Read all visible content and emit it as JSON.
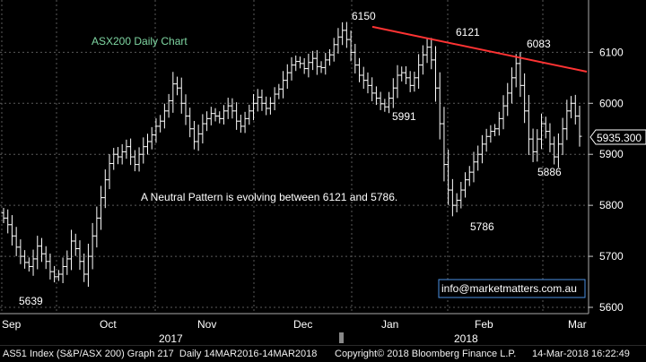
{
  "chart_data": {
    "type": "ohlc",
    "title": "ASX200 Daily Chart",
    "annotation": "A Neutral Pattern is evolving between 6121 and 5786.",
    "watermark": "info@marketmatters.com.au",
    "last_price_label": "5935.300",
    "last_price": 5935.3,
    "ylim": [
      5590,
      6180
    ],
    "y_ticks": [
      5600,
      5700,
      5800,
      5900,
      6000,
      6100
    ],
    "y_tick_labels": [
      "5600",
      "5700",
      "5800",
      "5900",
      "6000",
      "6100"
    ],
    "months": [
      "Sep",
      "Oct",
      "Nov",
      "Dec",
      "Jan",
      "Feb",
      "Mar"
    ],
    "years": [
      "2017",
      "2018"
    ],
    "price_labels": [
      "6150",
      "6121",
      "6083",
      "5991",
      "5886",
      "5786",
      "5639"
    ],
    "trendline": {
      "from": 6150,
      "to": 6062,
      "color": "#ff3333"
    },
    "bar_color": "#ffffff",
    "closes": [
      5775,
      5762,
      5740,
      5718,
      5700,
      5688,
      5680,
      5695,
      5720,
      5705,
      5690,
      5670,
      5660,
      5665,
      5680,
      5695,
      5730,
      5715,
      5690,
      5665,
      5700,
      5740,
      5775,
      5815,
      5850,
      5882,
      5900,
      5895,
      5905,
      5915,
      5895,
      5880,
      5900,
      5915,
      5925,
      5938,
      5955,
      5965,
      5985,
      6005,
      6038,
      6030,
      6000,
      5975,
      5950,
      5925,
      5940,
      5960,
      5970,
      5980,
      5975,
      5970,
      5985,
      5995,
      5985,
      5965,
      5955,
      5970,
      5985,
      6000,
      6012,
      6000,
      5990,
      6000,
      6018,
      6028,
      6045,
      6060,
      6075,
      6082,
      6078,
      6068,
      6080,
      6088,
      6072,
      6070,
      6085,
      6095,
      6115,
      6130,
      6143,
      6125,
      6100,
      6075,
      6055,
      6045,
      6035,
      6020,
      6010,
      5999,
      5993,
      6010,
      6030,
      6055,
      6060,
      6050,
      6035,
      6050,
      6075,
      6095,
      6110,
      6085,
      6030,
      5960,
      5880,
      5830,
      5800,
      5810,
      5830,
      5850,
      5865,
      5885,
      5900,
      5920,
      5935,
      5945,
      5950,
      5970,
      5995,
      6020,
      6050,
      6078,
      6035,
      5985,
      5930,
      5905,
      5930,
      5960,
      5945,
      5920,
      5895,
      5920,
      5950,
      5985,
      6000,
      5975,
      5935.3
    ],
    "x_axis_labels": {
      "Sep": "Sep",
      "Oct": "Oct",
      "Nov": "Nov",
      "Dec": "Dec",
      "Jan": "Jan",
      "Feb": "Feb",
      "Mar": "Mar"
    }
  },
  "footer": {
    "left": "AS51 Index (S&P/ASX 200) Graph 217  Daily 14MAR2016-14MAR2018",
    "center": "Copyright© 2018 Bloomberg Finance L.P.",
    "right": "14-Mar-2018 16:22:49"
  },
  "colors": {
    "background": "#000000",
    "grid": "#5a5a5a",
    "text": "#ffffff",
    "title": "#7fd6a2",
    "watermark_border": "#4a90e2"
  }
}
